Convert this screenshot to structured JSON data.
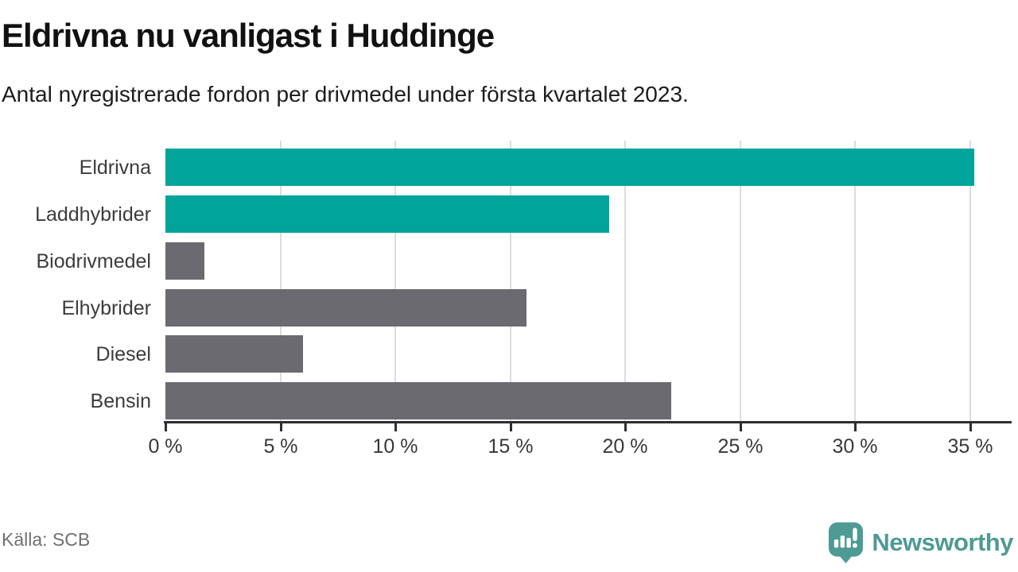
{
  "header": {
    "title": "Eldrivna nu vanligast i Huddinge",
    "subtitle": "Antal nyregistrerade fordon per drivmedel under första kvartalet 2023."
  },
  "footer": {
    "source": "Källa: SCB",
    "brand": "Newsworthy"
  },
  "colors": {
    "accent_teal": "#00a49b",
    "bar_gray": "#6b6a70",
    "brand_teal": "#4e9a94",
    "gridline": "#dcdcdc",
    "axis": "#2e2e2e"
  },
  "chart_data": {
    "type": "bar",
    "orientation": "horizontal",
    "title": "Eldrivna nu vanligast i Huddinge",
    "subtitle": "Antal nyregistrerade fordon per drivmedel under första kvartalet 2023.",
    "categories": [
      "Eldrivna",
      "Laddhybrider",
      "Biodrivmedel",
      "Elhybrider",
      "Diesel",
      "Bensin"
    ],
    "values": [
      35.2,
      19.3,
      1.7,
      15.7,
      6.0,
      22.0
    ],
    "bar_colors": [
      "#00a49b",
      "#00a49b",
      "#6b6a70",
      "#6b6a70",
      "#6b6a70",
      "#6b6a70"
    ],
    "xlabel": "",
    "ylabel": "",
    "x_tick_labels": [
      "0 %",
      "5 %",
      "10 %",
      "15 %",
      "20 %",
      "25 %",
      "30 %",
      "35 %"
    ],
    "x_tick_values": [
      0,
      5,
      10,
      15,
      20,
      25,
      30,
      35
    ],
    "xlim": [
      0,
      36.6
    ],
    "grid": "vertical",
    "legend": "none"
  }
}
